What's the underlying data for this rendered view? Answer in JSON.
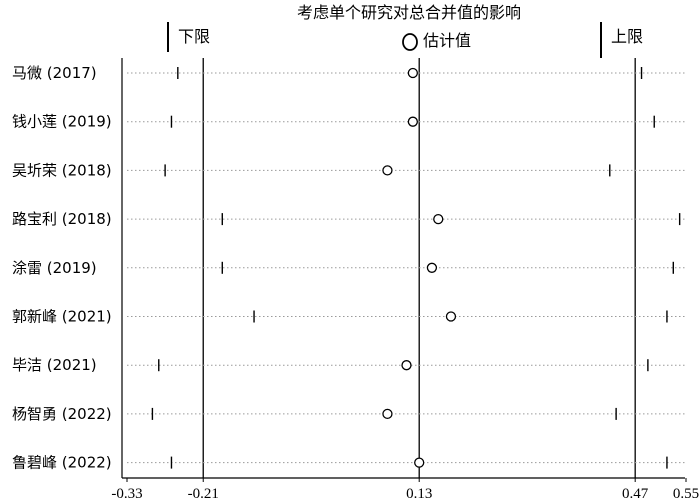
{
  "chart_data": {
    "type": "forest",
    "title": "考虑单个研究对总合并值的影响",
    "legend": {
      "lower_label": "下限",
      "estimate_label": "估计值",
      "upper_label": "上限"
    },
    "xlim": [
      -0.33,
      0.55
    ],
    "x_ticks": [
      {
        "value": -0.33,
        "label": "-0.33"
      },
      {
        "value": -0.21,
        "label": "-0.21"
      },
      {
        "value": 0.13,
        "label": "0.13"
      },
      {
        "value": 0.47,
        "label": "0.47"
      },
      {
        "value": 0.55,
        "label": "0.55"
      }
    ],
    "reference_lines": [
      -0.21,
      0.13,
      0.47
    ],
    "studies": [
      {
        "label": "马微 (2017)",
        "estimate": 0.12,
        "lower": -0.25,
        "upper": 0.48
      },
      {
        "label": "钱小莲 (2019)",
        "estimate": 0.12,
        "lower": -0.26,
        "upper": 0.5
      },
      {
        "label": "吴圻荣 (2018)",
        "estimate": 0.08,
        "lower": -0.27,
        "upper": 0.43
      },
      {
        "label": "路宝利 (2018)",
        "estimate": 0.16,
        "lower": -0.18,
        "upper": 0.54
      },
      {
        "label": "涂雷 (2019)",
        "estimate": 0.15,
        "lower": -0.18,
        "upper": 0.53
      },
      {
        "label": "郭新峰 (2021)",
        "estimate": 0.18,
        "lower": -0.13,
        "upper": 0.52
      },
      {
        "label": "毕洁 (2021)",
        "estimate": 0.11,
        "lower": -0.28,
        "upper": 0.49
      },
      {
        "label": "杨智勇 (2022)",
        "estimate": 0.08,
        "lower": -0.29,
        "upper": 0.44
      },
      {
        "label": "鲁碧峰 (2022)",
        "estimate": 0.13,
        "lower": -0.26,
        "upper": 0.52
      }
    ]
  }
}
